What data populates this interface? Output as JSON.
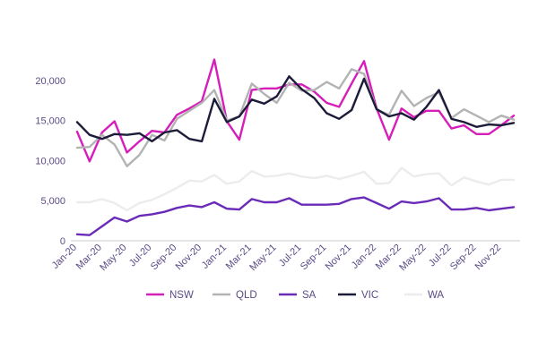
{
  "chart_data": {
    "type": "line",
    "title": "",
    "xlabel": "",
    "ylabel": "",
    "ylim": [
      0,
      25000
    ],
    "yticks": [
      0,
      5000,
      10000,
      15000,
      20000
    ],
    "ytick_labels": [
      "0",
      "5,000",
      "10,000",
      "15,000",
      "20,000"
    ],
    "grid": false,
    "legend_position": "bottom",
    "categories": [
      "Jan-20",
      "Feb-20",
      "Mar-20",
      "Apr-20",
      "May-20",
      "Jun-20",
      "Jul-20",
      "Aug-20",
      "Sep-20",
      "Oct-20",
      "Nov-20",
      "Dec-20",
      "Jan-21",
      "Feb-21",
      "Mar-21",
      "Apr-21",
      "May-21",
      "Jun-21",
      "Jul-21",
      "Aug-21",
      "Sep-21",
      "Oct-21",
      "Nov-21",
      "Dec-21",
      "Jan-22",
      "Feb-22",
      "Mar-22",
      "Apr-22",
      "May-22",
      "Jun-22",
      "Jul-22",
      "Aug-22",
      "Sep-22",
      "Oct-22",
      "Nov-22",
      "Dec-22"
    ],
    "x_tick_labels": [
      "Jan-20",
      "Mar-20",
      "May-20",
      "Jul-20",
      "Sep-20",
      "Nov-20",
      "Jan-21",
      "Mar-21",
      "May-21",
      "Jul-21",
      "Sep-21",
      "Nov-21",
      "Jan-22",
      "Mar-22",
      "May-22",
      "Jul-22",
      "Sep-22",
      "Nov-22"
    ],
    "series": [
      {
        "name": "NSW",
        "color": "#d61eb9",
        "values": [
          13600,
          9900,
          13500,
          14900,
          11000,
          12400,
          13700,
          13500,
          15700,
          16500,
          17400,
          22600,
          14900,
          12600,
          18800,
          19000,
          19000,
          19500,
          19500,
          18600,
          17200,
          16700,
          19600,
          22400,
          16500,
          12600,
          16500,
          15400,
          16200,
          16200,
          14000,
          14400,
          13300,
          13300,
          14400,
          15600
        ]
      },
      {
        "name": "QLD",
        "color": "#b3b3b3",
        "values": [
          11600,
          11700,
          13200,
          12000,
          9300,
          10700,
          13200,
          12500,
          15200,
          16200,
          17200,
          18800,
          15000,
          15500,
          19600,
          18300,
          17200,
          19700,
          18700,
          18800,
          19800,
          19000,
          21400,
          20800,
          16400,
          15700,
          18700,
          16800,
          17800,
          18500,
          15300,
          16400,
          15600,
          14800,
          15600,
          15100
        ]
      },
      {
        "name": "SA",
        "color": "#6a2bb8",
        "values": [
          800,
          700,
          1800,
          2900,
          2400,
          3100,
          3300,
          3600,
          4100,
          4400,
          4200,
          4800,
          4000,
          3900,
          5200,
          4800,
          4800,
          5300,
          4500,
          4500,
          4500,
          4600,
          5200,
          5400,
          4700,
          4000,
          4900,
          4700,
          4900,
          5300,
          3900,
          3900,
          4100,
          3800,
          4000,
          4200
        ]
      },
      {
        "name": "VIC",
        "color": "#1c1c3a",
        "values": [
          14800,
          13200,
          12700,
          13300,
          13200,
          13400,
          12400,
          13500,
          13800,
          12700,
          12400,
          17700,
          14800,
          15500,
          17600,
          17100,
          18000,
          20500,
          18900,
          17800,
          15900,
          15200,
          16300,
          20200,
          16400,
          15500,
          15900,
          15100,
          16700,
          18800,
          15200,
          14800,
          14200,
          14500,
          14400,
          14700
        ]
      },
      {
        "name": "WA",
        "color": "#ececec",
        "values": [
          4800,
          4800,
          5200,
          4700,
          3800,
          4700,
          5100,
          5800,
          6600,
          7500,
          7400,
          8200,
          7100,
          7400,
          8700,
          8000,
          8100,
          8400,
          8000,
          7800,
          8100,
          7700,
          8100,
          8600,
          7100,
          7200,
          9100,
          8000,
          8300,
          8400,
          6900,
          7900,
          7400,
          7000,
          7600,
          7600
        ]
      }
    ]
  }
}
